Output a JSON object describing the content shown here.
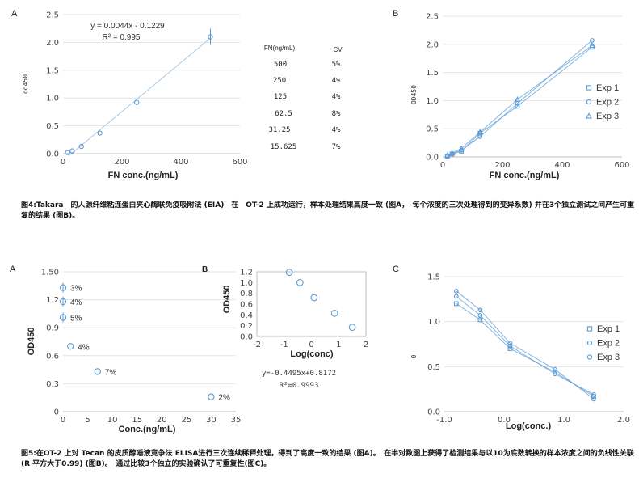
{
  "colors": {
    "series": "#5b9bd5",
    "grid": "#e4e4e4",
    "axis": "#bfbfbf"
  },
  "icons": {
    "legend_square": "square-marker-icon",
    "legend_circle": "circle-marker-icon",
    "legend_triangle": "triangle-marker-icon"
  },
  "chart_data": [
    {
      "id": "fig4A",
      "type": "scatter",
      "panel": "A",
      "xlabel": "FN conc.(ng/mL)",
      "ylabel": "od450",
      "xlim": [
        0,
        600
      ],
      "ylim": [
        0,
        2.5
      ],
      "xticks": [
        "0",
        "200",
        "400",
        "600"
      ],
      "yticks": [
        "0.0",
        "0.5",
        "1.0",
        "1.5",
        "2.0",
        "2.5"
      ],
      "points": [
        {
          "x": 15.625,
          "y": 0.02
        },
        {
          "x": 31.25,
          "y": 0.05
        },
        {
          "x": 62.5,
          "y": 0.13
        },
        {
          "x": 125,
          "y": 0.37
        },
        {
          "x": 250,
          "y": 0.92
        },
        {
          "x": 500,
          "y": 2.1
        }
      ],
      "fit": {
        "slope": 0.0044,
        "intercept": -0.1229
      },
      "equation": "y = 0.0044x - 0.1229",
      "r2": "R² = 0.995"
    },
    {
      "id": "fig4B",
      "type": "line",
      "panel": "B",
      "xlabel": "FN conc.(ng/mL)",
      "ylabel": "OD450",
      "xlim": [
        0,
        600
      ],
      "ylim": [
        0,
        2.5
      ],
      "xticks": [
        "0",
        "200",
        "400",
        "600"
      ],
      "yticks": [
        "0.0",
        "0.5",
        "1.0",
        "1.5",
        "2.0",
        "2.5"
      ],
      "x": [
        15.625,
        31.25,
        62.5,
        125,
        250,
        500
      ],
      "series": [
        {
          "name": "Exp 1",
          "marker": "square",
          "values": [
            0.01,
            0.05,
            0.1,
            0.42,
            0.9,
            1.95
          ]
        },
        {
          "name": "Exp 2",
          "marker": "circle",
          "values": [
            0.02,
            0.06,
            0.12,
            0.36,
            0.95,
            2.07
          ]
        },
        {
          "name": "Exp 3",
          "marker": "triangle",
          "values": [
            0.03,
            0.07,
            0.15,
            0.44,
            1.02,
            1.98
          ]
        }
      ]
    },
    {
      "id": "fig5A",
      "type": "scatter",
      "panel": "A",
      "xlabel": "Conc.(ng/mL)",
      "ylabel": "OD450",
      "xlim": [
        0,
        35
      ],
      "ylim": [
        0,
        1.5
      ],
      "xticks": [
        "0",
        "5",
        "10",
        "15",
        "20",
        "25",
        "30",
        "35"
      ],
      "yticks": [
        "0",
        "0.3",
        "0.6",
        "0.9",
        "1.2",
        "1.50"
      ],
      "points": [
        {
          "x": 0,
          "y": 1.33,
          "label": "3%"
        },
        {
          "x": 0,
          "y": 1.18,
          "label": "4%"
        },
        {
          "x": 0,
          "y": 1.01,
          "label": "5%"
        },
        {
          "x": 1.5,
          "y": 0.7,
          "label": "4%"
        },
        {
          "x": 7,
          "y": 0.43,
          "label": "7%"
        },
        {
          "x": 30,
          "y": 0.16,
          "label": "2%"
        }
      ]
    },
    {
      "id": "fig5B",
      "type": "scatter",
      "panel": "B",
      "xlabel": "Log(conc)",
      "ylabel": "OD450",
      "xlim": [
        -2,
        2
      ],
      "ylim": [
        0,
        1.2
      ],
      "xticks": [
        "-2",
        "-1",
        "0",
        "1",
        "2"
      ],
      "yticks": [
        "0.0",
        "0.2",
        "0.4",
        "0.6",
        "0.8",
        "1.0",
        "1.2"
      ],
      "points": [
        {
          "x": -0.81,
          "y": 1.19
        },
        {
          "x": -0.42,
          "y": 1.0
        },
        {
          "x": 0.1,
          "y": 0.72
        },
        {
          "x": 0.85,
          "y": 0.43
        },
        {
          "x": 1.5,
          "y": 0.17
        }
      ],
      "equation": "y=-0.4495x+0.8172",
      "r2": "R²=0.9993"
    },
    {
      "id": "fig5C",
      "type": "line",
      "panel": "C",
      "xlabel": "Log(conc.)",
      "ylabel": "0",
      "xlim": [
        -1.0,
        2.0
      ],
      "ylim": [
        0,
        1.5
      ],
      "xticks": [
        "-1.0",
        "0.0",
        "1.0",
        "2.0"
      ],
      "yticks": [
        "0.0",
        "0.5",
        "1.0",
        "1.5"
      ],
      "x": [
        -0.8,
        -0.4,
        0.1,
        0.85,
        1.5
      ],
      "series": [
        {
          "name": "Exp 1",
          "marker": "square",
          "values": [
            1.2,
            1.02,
            0.7,
            0.44,
            0.17
          ]
        },
        {
          "name": "Exp 2",
          "marker": "circle",
          "values": [
            1.34,
            1.13,
            0.76,
            0.47,
            0.14
          ]
        },
        {
          "name": "Exp 3",
          "marker": "circle",
          "values": [
            1.28,
            1.07,
            0.73,
            0.42,
            0.19
          ]
        }
      ]
    }
  ],
  "cv_table": {
    "headers": [
      "FN(ng/mL)",
      "CV"
    ],
    "rows": [
      [
        "500",
        "5%"
      ],
      [
        "250",
        "4%"
      ],
      [
        "125",
        "4%"
      ],
      [
        "62.5",
        "8%"
      ],
      [
        "31.25",
        "4%"
      ],
      [
        "15.625",
        "7%"
      ]
    ]
  },
  "captions": {
    "fig4": "图4:Takara　的人源纤维粘连蛋白夹心酶联免疫吸附法 (EIA)　在　OT-2 上成功运行，样本处理结果高度一致 (图A，　每个浓度的三次处理得到的变异系数) 并在3个独立测试之间产生可重复的结果 (图B)。",
    "fig5": "图5:在OT-2 上对 Tecan 的皮质醇唾液竞争法 ELISA进行三次连续稀释处理，得到了高度一致的结果 (图A)。　在半对数图上获得了检测结果与以10为底数转换的样本浓度之间的负线性关联(R 平方大于0.99) (图B)。　通过比较3个独立的实验确认了可重复性(图C)。"
  }
}
